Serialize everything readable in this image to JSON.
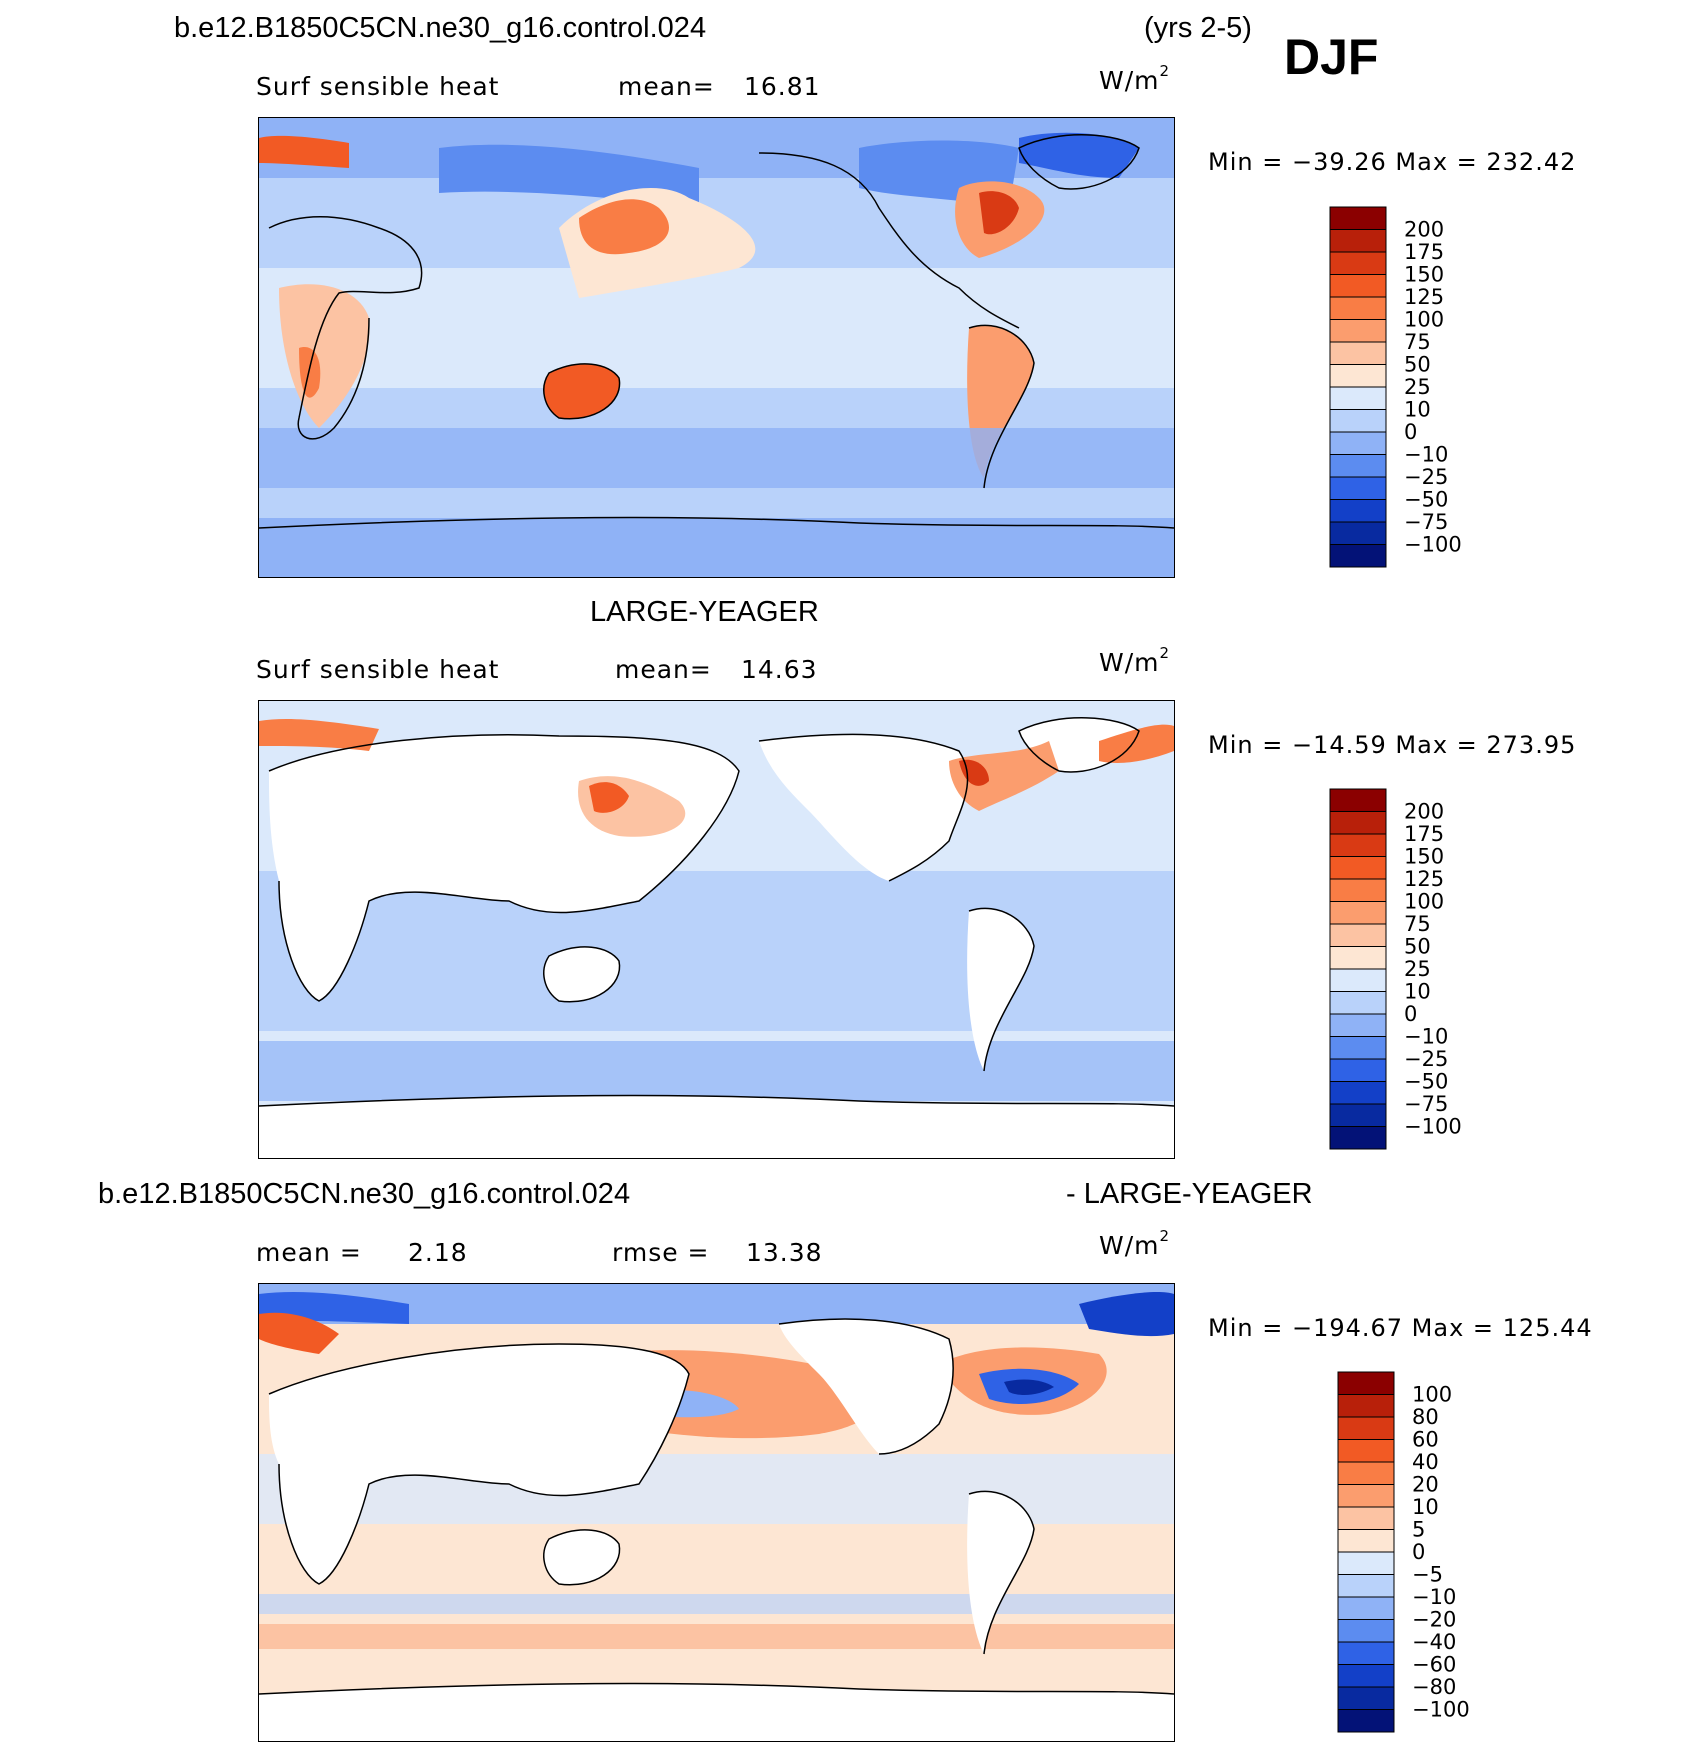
{
  "header": {
    "case_name": "b.e12.B1850C5CN.ne30_g16.control.024",
    "years": "(yrs 2-5)",
    "season": "DJF"
  },
  "panels": [
    {
      "variable": "Surf sensible heat",
      "stat_left_label": "mean=",
      "stat_left_value": "16.81",
      "units": "W/m",
      "units_sup": "2",
      "minmax": "Min = −39.26 Max = 232.42",
      "colorbar_labels": [
        "200",
        "175",
        "150",
        "125",
        "100",
        "75",
        "50",
        "25",
        "10",
        "0",
        "−10",
        "−25",
        "−50",
        "−75",
        "−100"
      ],
      "colorbar_colors": [
        "#8b0000",
        "#b8200a",
        "#d93a14",
        "#f25a24",
        "#f97d45",
        "#fb9d6e",
        "#fcc3a3",
        "#fde6d3",
        "#dbe9fb",
        "#b9d2fa",
        "#8fb2f6",
        "#5c8cf0",
        "#2f62e6",
        "#1340c8",
        "#082aa0",
        "#031277"
      ]
    },
    {
      "title": "LARGE-YEAGER",
      "variable": "Surf sensible heat",
      "stat_left_label": "mean=",
      "stat_left_value": "14.63",
      "units": "W/m",
      "units_sup": "2",
      "minmax": "Min = −14.59 Max = 273.95",
      "colorbar_labels": [
        "200",
        "175",
        "150",
        "125",
        "100",
        "75",
        "50",
        "25",
        "10",
        "0",
        "−10",
        "−25",
        "−50",
        "−75",
        "−100"
      ],
      "colorbar_colors": [
        "#8b0000",
        "#b8200a",
        "#d93a14",
        "#f25a24",
        "#f97d45",
        "#fb9d6e",
        "#fcc3a3",
        "#fde6d3",
        "#dbe9fb",
        "#b9d2fa",
        "#8fb2f6",
        "#5c8cf0",
        "#2f62e6",
        "#1340c8",
        "#082aa0",
        "#031277"
      ]
    },
    {
      "title_left": "b.e12.B1850C5CN.ne30_g16.control.024",
      "title_right": "- LARGE-YEAGER",
      "stat_left_label": "mean =",
      "stat_left_value": "2.18",
      "stat_right_label": "rmse =",
      "stat_right_value": "13.38",
      "units": "W/m",
      "units_sup": "2",
      "minmax": "Min = −194.67 Max = 125.44",
      "colorbar_labels": [
        "100",
        "80",
        "60",
        "40",
        "20",
        "10",
        "5",
        "0",
        "−5",
        "−10",
        "−20",
        "−40",
        "−60",
        "−80",
        "−100"
      ],
      "colorbar_colors": [
        "#8b0000",
        "#b8200a",
        "#d93a14",
        "#f25a24",
        "#f97d45",
        "#fb9d6e",
        "#fcc3a3",
        "#fde6d3",
        "#dbe9fb",
        "#b9d2fa",
        "#8fb2f6",
        "#5c8cf0",
        "#2f62e6",
        "#1340c8",
        "#082aa0",
        "#031277"
      ]
    }
  ]
}
